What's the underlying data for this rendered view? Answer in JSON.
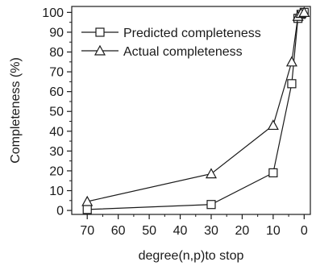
{
  "chart_data": {
    "type": "line",
    "title": "",
    "xlabel": "degree(n,p)to stop",
    "ylabel": "Completeness (%)",
    "x_reversed": true,
    "xlim": [
      75,
      -2
    ],
    "ylim": [
      -2,
      103
    ],
    "xticks": [
      70,
      60,
      50,
      40,
      30,
      20,
      10,
      0
    ],
    "yticks": [
      0,
      10,
      20,
      30,
      40,
      50,
      60,
      70,
      80,
      90,
      100
    ],
    "grid": false,
    "legend_position": "top-left",
    "series": [
      {
        "name": "Predicted completeness",
        "marker": "square",
        "color": "#1a1a1a",
        "x": [
          70,
          30,
          10,
          4,
          2,
          1,
          0
        ],
        "y": [
          0.5,
          3,
          19,
          64,
          97,
          99,
          100
        ]
      },
      {
        "name": "Actual completeness",
        "marker": "triangle",
        "color": "#1a1a1a",
        "x": [
          70,
          30,
          10,
          4,
          2,
          1,
          0
        ],
        "y": [
          4.5,
          18.5,
          43,
          75,
          98,
          99.5,
          100
        ]
      }
    ]
  }
}
